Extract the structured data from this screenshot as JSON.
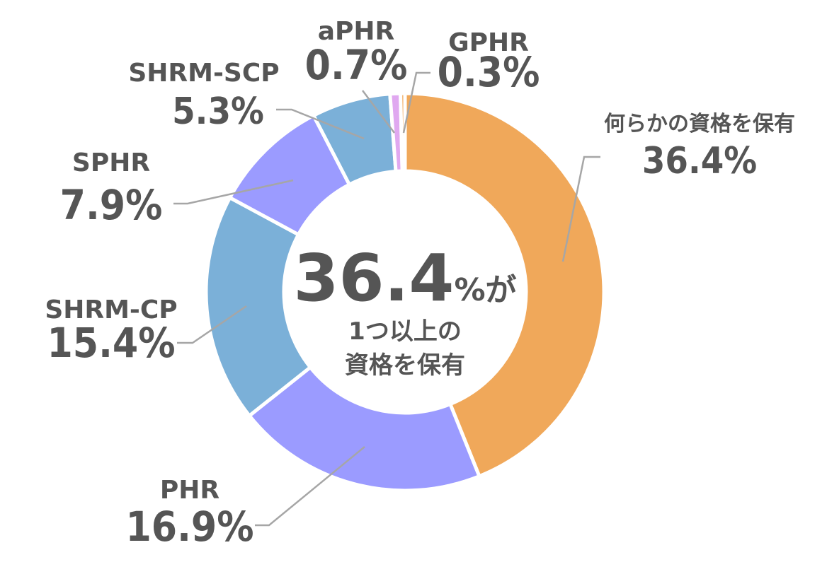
{
  "chart_data": {
    "type": "pie",
    "donut": true,
    "center_text": {
      "value": "36.4",
      "unit": "%が",
      "line2": "1つ以上の",
      "line3": "資格を保有"
    },
    "series": [
      {
        "name": "何らかの資格を保有",
        "value": 36.4,
        "label": "36.4%",
        "color": "#F0A85A"
      },
      {
        "name": "PHR",
        "value": 16.9,
        "label": "16.9%",
        "color": "#9B9BFF"
      },
      {
        "name": "SHRM-CP",
        "value": 15.4,
        "label": "15.4%",
        "color": "#7BB0D8"
      },
      {
        "name": "SPHR",
        "value": 7.9,
        "label": "7.9%",
        "color": "#9B9BFF"
      },
      {
        "name": "SHRM-SCP",
        "value": 5.3,
        "label": "5.3%",
        "color": "#7BB0D8"
      },
      {
        "name": "aPHR",
        "value": 0.7,
        "label": "0.7%",
        "color": "#E0A8F0"
      },
      {
        "name": "GPHR",
        "value": 0.3,
        "label": "0.3%",
        "color": "#F0A85A"
      }
    ]
  }
}
